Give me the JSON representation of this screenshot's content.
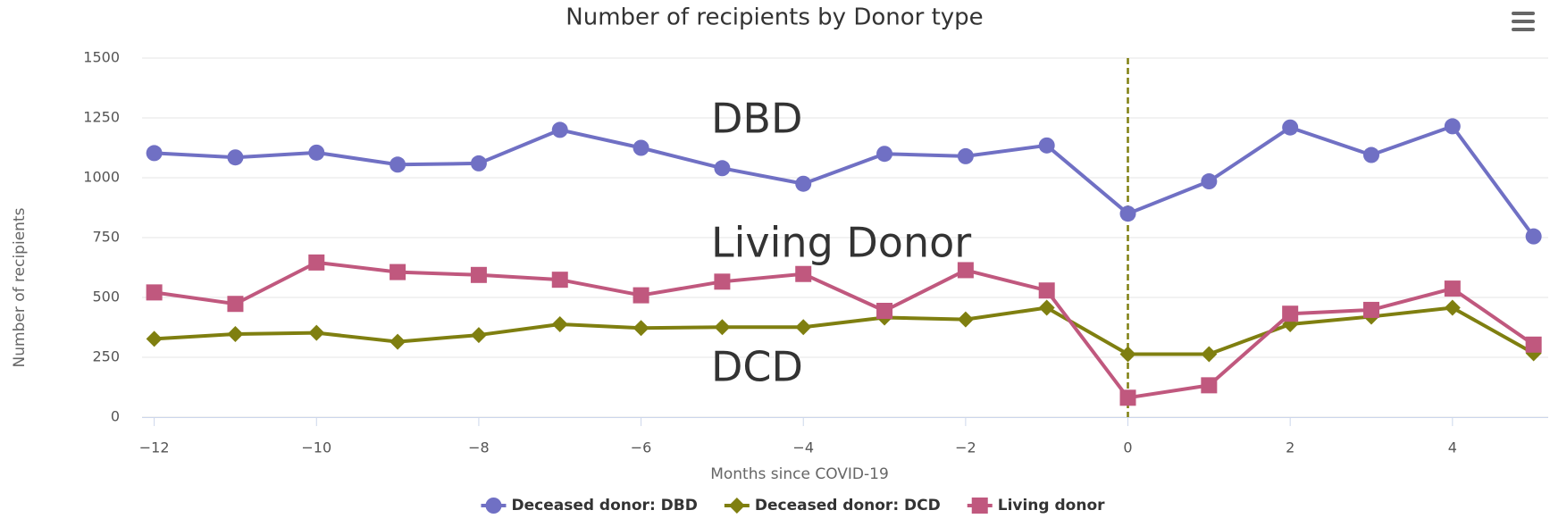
{
  "chart_data": {
    "type": "line",
    "title": "Number of recipients by Donor type",
    "x_label": "Months since COVID-19",
    "y_label": "Number of recipients",
    "x": [
      -12,
      -11,
      -10,
      -9,
      -8,
      -7,
      -6,
      -5,
      -4,
      -3,
      -2,
      -1,
      0,
      1,
      2,
      3,
      4,
      5
    ],
    "series": [
      {
        "name": "Deceased donor: DBD",
        "color": "#7070c4",
        "marker": "circle",
        "values": [
          1103,
          1085,
          1105,
          1055,
          1060,
          1200,
          1125,
          1040,
          975,
          1100,
          1090,
          1135,
          850,
          985,
          1210,
          1095,
          1215,
          755
        ]
      },
      {
        "name": "Deceased donor: DCD",
        "color": "#7f7f10",
        "marker": "diamond",
        "values": [
          327,
          347,
          352,
          315,
          343,
          388,
          372,
          376,
          376,
          416,
          408,
          457,
          263,
          263,
          388,
          420,
          457,
          267
        ]
      },
      {
        "name": "Living donor",
        "color": "#c0587e",
        "marker": "square",
        "values": [
          521,
          473,
          646,
          606,
          594,
          574,
          509,
          566,
          598,
          444,
          614,
          529,
          81,
          133,
          432,
          448,
          537,
          303
        ]
      }
    ],
    "annotations": [
      "DBD",
      "Living Donor",
      "DCD"
    ],
    "xlim": [
      -12.15,
      5.18
    ],
    "ylim": [
      0,
      1500
    ],
    "xticks": [
      {
        "value": -12,
        "label": "−12"
      },
      {
        "value": -10,
        "label": "−10"
      },
      {
        "value": -8,
        "label": "−8"
      },
      {
        "value": -6,
        "label": "−6"
      },
      {
        "value": -4,
        "label": "−4"
      },
      {
        "value": -2,
        "label": "−2"
      },
      0,
      2,
      4
    ],
    "yticks": [
      0,
      250,
      500,
      750,
      1000,
      1250,
      1500
    ],
    "grid": true,
    "vline": {
      "value": 0,
      "color": "#7f7f10",
      "dashed": true
    },
    "legend": "bottom"
  }
}
